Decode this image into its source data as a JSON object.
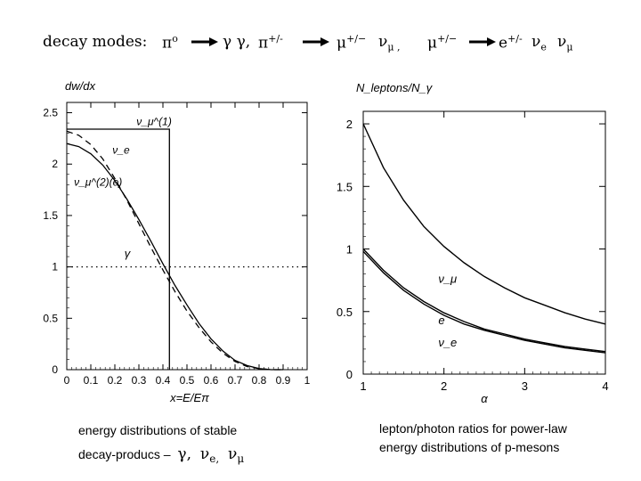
{
  "header": {
    "label": "decay modes:",
    "pi0": "π",
    "pi0_sup": "o",
    "gammas": "γ γ,",
    "pi": "π",
    "pi_sup": "+/-",
    "mu1": "μ",
    "mu1_sup": "+/−",
    "nu1": "ν",
    "nu1_sub": "μ ,",
    "mu2": "μ",
    "mu2_sup": "+/−",
    "e": "e",
    "e_sup": "+/-",
    "nu_e": "ν",
    "nu_e_sub": "e",
    "nu_mu": "ν",
    "nu_mu_sub": "μ"
  },
  "colors": {
    "ink": "#000000",
    "background": "#ffffff"
  },
  "chart_data": [
    {
      "type": "line",
      "title": "",
      "ylabel": "dw/dx",
      "xlabel": "x=E/Eπ",
      "xlim": [
        0,
        1
      ],
      "ylim": [
        0,
        2.6
      ],
      "x_ticks": [
        "0",
        "0.1",
        "0.2",
        "0.3",
        "0.4",
        "0.5",
        "0.6",
        "0.7",
        "0.8",
        "0.9",
        "1"
      ],
      "y_ticks": [
        "0",
        "0.5",
        "1",
        "1.5",
        "2",
        "2.5"
      ],
      "series": [
        {
          "name": "ν_μ^(1)",
          "style": "solid",
          "x": [
            0,
            0.427,
            0.427
          ],
          "y": [
            2.34,
            2.34,
            0
          ]
        },
        {
          "name": "ν_e",
          "style": "solid",
          "x": [
            0,
            0.05,
            0.1,
            0.15,
            0.2,
            0.25,
            0.3,
            0.35,
            0.4,
            0.45,
            0.5,
            0.55,
            0.6,
            0.65,
            0.7,
            0.75,
            0.8,
            0.85,
            0.9
          ],
          "y": [
            2.2,
            2.17,
            2.1,
            1.99,
            1.84,
            1.66,
            1.46,
            1.25,
            1.03,
            0.82,
            0.63,
            0.45,
            0.3,
            0.18,
            0.09,
            0.04,
            0.01,
            0.0,
            0.0
          ]
        },
        {
          "name": "ν_μ^(2)(e)",
          "style": "dashed",
          "x": [
            0,
            0.05,
            0.1,
            0.15,
            0.2,
            0.25,
            0.3,
            0.35,
            0.4,
            0.45,
            0.5,
            0.55,
            0.6,
            0.65,
            0.7,
            0.75,
            0.8,
            0.85,
            0.9
          ],
          "y": [
            2.32,
            2.28,
            2.19,
            2.05,
            1.86,
            1.65,
            1.42,
            1.19,
            0.97,
            0.76,
            0.57,
            0.41,
            0.27,
            0.16,
            0.08,
            0.03,
            0.01,
            0.0,
            0.0
          ]
        },
        {
          "name": "γ",
          "style": "dotted",
          "x": [
            0,
            1
          ],
          "y": [
            1,
            1
          ]
        }
      ],
      "annotations": [
        "ν_μ^(1)",
        "ν_e",
        "ν_μ^(2)(e)",
        "γ"
      ]
    },
    {
      "type": "line",
      "title": "",
      "ylabel": "N_leptons/N_γ",
      "xlabel": "α",
      "xlim": [
        1,
        4
      ],
      "ylim": [
        0,
        2.1
      ],
      "x_ticks": [
        "1",
        "2",
        "3",
        "4"
      ],
      "y_ticks": [
        "0",
        "0.5",
        "1",
        "1.5",
        "2"
      ],
      "series": [
        {
          "name": "ν_μ",
          "style": "solid",
          "x": [
            1,
            1.25,
            1.5,
            1.75,
            2,
            2.25,
            2.5,
            2.75,
            3,
            3.25,
            3.5,
            3.75,
            4
          ],
          "y": [
            2.0,
            1.65,
            1.39,
            1.18,
            1.02,
            0.89,
            0.78,
            0.69,
            0.61,
            0.55,
            0.49,
            0.44,
            0.4
          ]
        },
        {
          "name": "e",
          "style": "solid",
          "x": [
            1,
            1.25,
            1.5,
            1.75,
            2,
            2.25,
            2.5,
            2.75,
            3,
            3.25,
            3.5,
            3.75,
            4
          ],
          "y": [
            1.0,
            0.83,
            0.69,
            0.58,
            0.49,
            0.42,
            0.36,
            0.32,
            0.28,
            0.25,
            0.22,
            0.2,
            0.18
          ]
        },
        {
          "name": "ν_e",
          "style": "solid",
          "x": [
            1,
            1.25,
            1.5,
            1.75,
            2,
            2.25,
            2.5,
            2.75,
            3,
            3.25,
            3.5,
            3.75,
            4
          ],
          "y": [
            0.98,
            0.81,
            0.67,
            0.56,
            0.47,
            0.4,
            0.35,
            0.31,
            0.27,
            0.24,
            0.21,
            0.19,
            0.17
          ]
        }
      ],
      "annotations": [
        "ν_μ",
        "e",
        "ν_e"
      ]
    }
  ],
  "captions": {
    "left_line1": "energy distributions of stable",
    "left_line2": "decay-producs –",
    "left_gamma": "γ,",
    "left_nu_e": "ν",
    "left_nu_e_sub": "e,",
    "left_nu_mu": "ν",
    "left_nu_mu_sub": "μ",
    "right_line1": "lepton/photon ratios for power-law",
    "right_line2": "energy distributions of p-mesons"
  }
}
